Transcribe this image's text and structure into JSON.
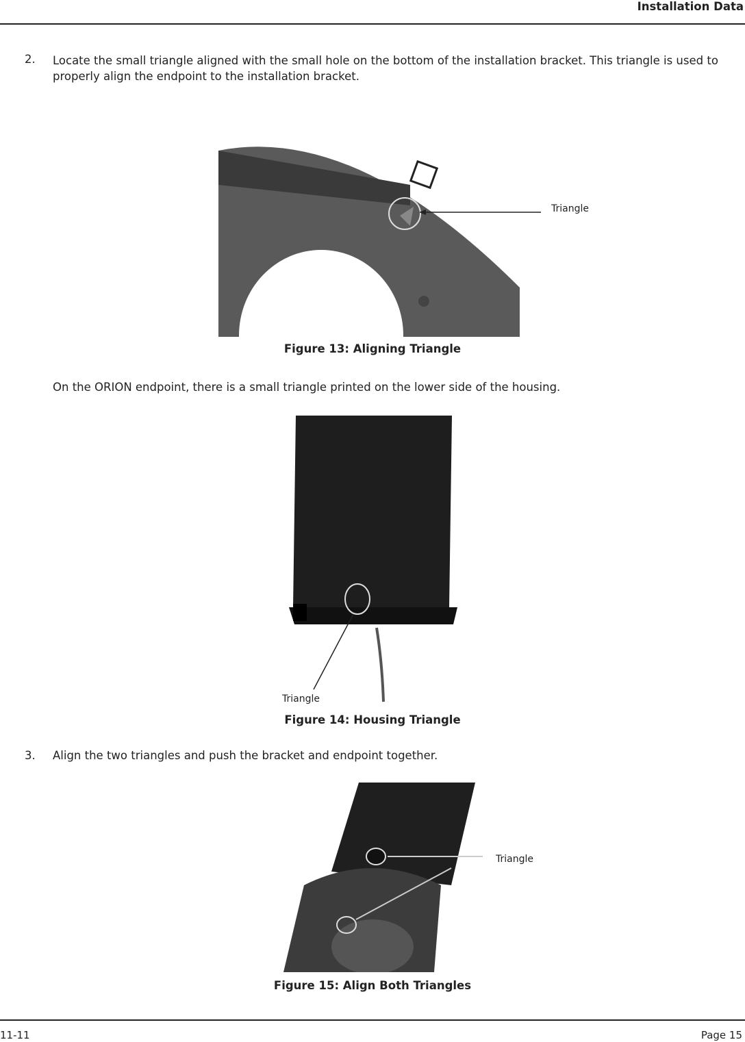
{
  "header": {
    "title": "Installation Data"
  },
  "step2": {
    "number": "2.",
    "text": "Locate the small triangle aligned with the small hole on the bottom of the installation bracket. This triangle is used to properly align the endpoint to the installation bracket."
  },
  "figure13": {
    "label": "Triangle",
    "caption": "Figure 13: Aligning Triangle"
  },
  "note": "On the ORION endpoint, there is a small triangle printed on the lower side of the housing.",
  "figure14": {
    "label": "Triangle",
    "caption": "Figure 14: Housing Triangle"
  },
  "step3": {
    "number": "3.",
    "text": "Align the two triangles and push the bracket and endpoint together."
  },
  "figure15": {
    "label": "Triangle",
    "caption": "Figure 15: Align Both Triangles"
  },
  "footer": {
    "left": "11-11",
    "right": "Page 15"
  }
}
